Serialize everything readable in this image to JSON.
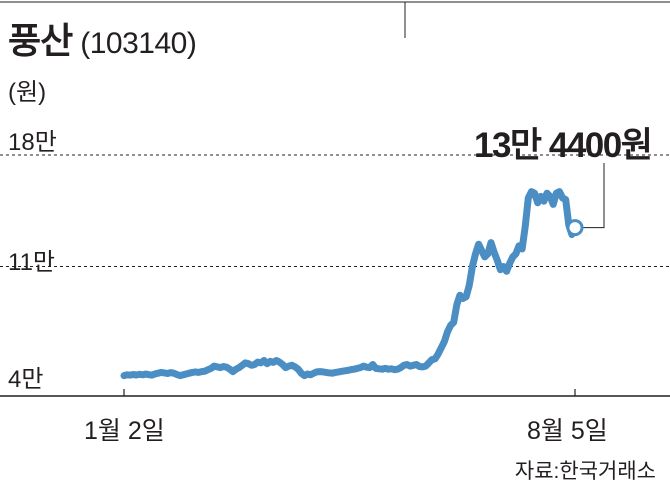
{
  "header": {
    "title": "풍산",
    "code": "(103140)"
  },
  "chart_data": {
    "type": "line",
    "title": "풍산 (103140)",
    "unit_label": "(원)",
    "yticks": [
      {
        "label": "18만",
        "value": 180000
      },
      {
        "label": "11만",
        "value": 110000
      },
      {
        "label": "4만",
        "value": 40000
      }
    ],
    "ylim": [
      40000,
      180000
    ],
    "xticks": [
      {
        "label": "1월 2일",
        "index": 0
      },
      {
        "label": "8월 5일",
        "index": 145
      }
    ],
    "grid": "dashed at 18만 and 11만",
    "annotation": {
      "label": "13만 4400원",
      "index": 145,
      "value": 134400
    },
    "series": [
      {
        "color": "#4a8ec4",
        "values": [
          41500,
          42000,
          41800,
          42200,
          41900,
          42300,
          42000,
          42500,
          42100,
          41800,
          42600,
          43000,
          43500,
          43200,
          42800,
          43400,
          43000,
          42200,
          41500,
          42000,
          42500,
          43000,
          43500,
          43800,
          43500,
          44000,
          44300,
          45200,
          46000,
          47500,
          47000,
          46500,
          47200,
          46800,
          45500,
          44000,
          45500,
          46500,
          48000,
          49500,
          49000,
          48000,
          48500,
          50000,
          49500,
          51000,
          49000,
          50500,
          49800,
          51000,
          50000,
          48500,
          46500,
          47500,
          48000,
          47000,
          45500,
          43000,
          41500,
          42500,
          42000,
          43000,
          43800,
          44000,
          43800,
          43500,
          43200,
          43000,
          43500,
          43800,
          44200,
          44500,
          44800,
          45300,
          45500,
          46000,
          46500,
          47500,
          46800,
          46500,
          48500,
          46000,
          45800,
          45500,
          46000,
          45500,
          45800,
          45200,
          45500,
          46500,
          48000,
          48500,
          47500,
          48000,
          48500,
          47200,
          47000,
          47500,
          49500,
          51500,
          52000,
          55000,
          59000,
          63000,
          69000,
          73000,
          75000,
          86000,
          92000,
          90000,
          91000,
          98000,
          110000,
          118000,
          124000,
          120000,
          116000,
          118000,
          125000,
          119000,
          114000,
          108000,
          110000,
          107000,
          112000,
          116000,
          118000,
          123000,
          121000,
          135000,
          153000,
          157000,
          156000,
          150000,
          154000,
          151000,
          156000,
          154000,
          149000,
          156000,
          157000,
          153000,
          152000,
          136000,
          130000,
          134400
        ]
      }
    ]
  },
  "source": "자료:한국거래소"
}
